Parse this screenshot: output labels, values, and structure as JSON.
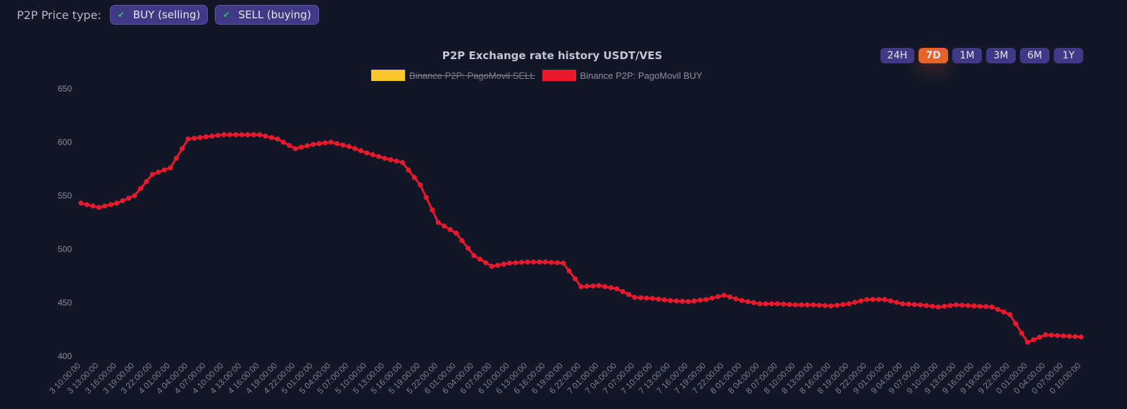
{
  "price_type": {
    "label": "P2P Price type:",
    "options": [
      {
        "label": "BUY (selling)",
        "checked": true,
        "icon": "check-icon"
      },
      {
        "label": "SELL (buying)",
        "checked": true,
        "icon": "check-icon"
      }
    ]
  },
  "ranges": {
    "buttons": [
      "24H",
      "7D",
      "1M",
      "3M",
      "6M",
      "1Y"
    ],
    "active": "7D"
  },
  "colors": {
    "background": "#111726",
    "button": "#3f3a86",
    "active_button": "#e8632a",
    "sell_series": "#fdc62f",
    "buy_series": "#e8192c",
    "check": "#34c05a"
  },
  "chart_data": {
    "type": "line",
    "title": "P2P Exchange rate history USDT/VES",
    "legend": [
      {
        "name": "Binance P2P: PagoMovil SELL",
        "color": "#fdc62f",
        "hidden": true
      },
      {
        "name": "Binance P2P: PagoMovil BUY",
        "color": "#e8192c",
        "hidden": false
      }
    ],
    "ylim": [
      400,
      650
    ],
    "yticks": [
      650,
      600,
      550,
      500,
      450,
      400
    ],
    "xlabel": "",
    "ylabel": "",
    "grid": false,
    "x": [
      "3 10:00:00",
      "3 13:00:00",
      "3 16:00:00",
      "3 19:00:00",
      "3 22:00:00",
      "4 01:00:00",
      "4 04:00:00",
      "4 07:00:00",
      "4 10:00:00",
      "4 13:00:00",
      "4 16:00:00",
      "4 19:00:00",
      "4 22:00:00",
      "5 01:00:00",
      "5 04:00:00",
      "5 07:00:00",
      "5 10:00:00",
      "5 13:00:00",
      "5 16:00:00",
      "5 19:00:00",
      "5 22:00:00",
      "6 01:00:00",
      "6 04:00:00",
      "6 07:00:00",
      "6 10:00:00",
      "6 13:00:00",
      "6 16:00:00",
      "6 19:00:00",
      "6 22:00:00",
      "7 01:00:00",
      "7 04:00:00",
      "7 07:00:00",
      "7 10:00:00",
      "7 13:00:00",
      "7 16:00:00",
      "7 19:00:00",
      "7 22:00:00",
      "8 01:00:00",
      "8 04:00:00",
      "8 07:00:00",
      "8 10:00:00",
      "8 13:00:00",
      "8 16:00:00",
      "8 19:00:00",
      "8 22:00:00",
      "9 01:00:00",
      "9 04:00:00",
      "9 07:00:00",
      "9 10:00:00",
      "9 13:00:00",
      "9 16:00:00",
      "9 19:00:00",
      "9 22:00:00",
      "0 01:00:00",
      "0 04:00:00",
      "0 07:00:00",
      "0 10:00:00"
    ],
    "series": [
      {
        "name": "Binance P2P: PagoMovil BUY",
        "values": [
          543,
          539,
          543,
          550,
          570,
          576,
          603,
          605,
          607,
          607,
          607,
          603,
          594,
          598,
          600,
          596,
          590,
          585,
          581,
          560,
          525,
          515,
          494,
          484,
          487,
          488,
          488,
          487,
          465,
          466,
          463,
          455,
          454,
          452,
          451,
          453,
          457,
          452,
          449,
          449,
          448,
          448,
          447,
          449,
          453,
          453,
          449,
          448,
          446,
          448,
          447,
          446,
          439,
          413,
          420,
          419,
          418
        ]
      }
    ]
  }
}
